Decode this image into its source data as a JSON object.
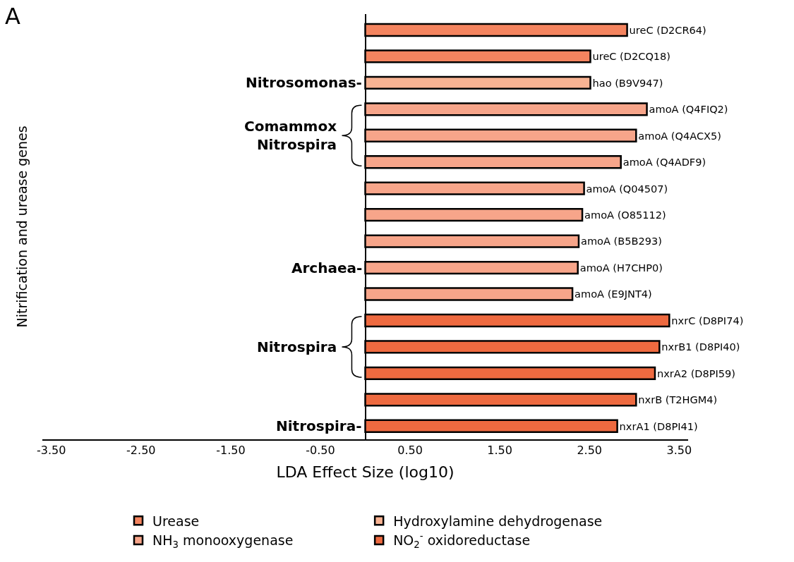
{
  "chart_data": {
    "type": "bar",
    "orientation": "horizontal",
    "xlabel": "LDA Effect Size (log10)",
    "ylabel": "Nitrification and urease genes",
    "categories": [
      "ureC (D2CR64)",
      "ureC (D2CQ18)",
      "hao (B9V947)",
      "amoA (Q4FIQ2)",
      "amoA (Q4ACX5)",
      "amoA (Q4ADF9)",
      "amoA (Q04507)",
      "amoA (O85112)",
      "amoA (B5B293)",
      "amoA (H7CHP0)",
      "amoA (E9JNT4)",
      "nxrC (D8PI74)",
      "nxrB1 (D8PI40)",
      "nxrA2 (D8PI59)",
      "nxrB (T2HGM4)",
      "nxrA1 (D8PI41)"
    ],
    "series": [
      {
        "name": "Urease",
        "color": "#f4845f",
        "values": [
          2.92,
          2.51,
          null,
          null,
          null,
          null,
          null,
          null,
          null,
          null,
          null,
          null,
          null,
          null,
          null,
          null
        ]
      },
      {
        "name": "Hydroxylamine dehydrogenase",
        "color": "#f8b393",
        "values": [
          null,
          null,
          2.51,
          null,
          null,
          null,
          null,
          null,
          null,
          null,
          null,
          null,
          null,
          null,
          null,
          null
        ]
      },
      {
        "name": "NH$_{3}$ monooxygenase",
        "color": "#f7a58a",
        "values": [
          null,
          null,
          null,
          3.14,
          3.02,
          2.85,
          2.44,
          2.42,
          2.38,
          2.37,
          2.31,
          null,
          null,
          null,
          null,
          null
        ]
      },
      {
        "name": "NO$_{2}$$^{-}$ oxidoreductase",
        "color": "#ee6a40",
        "values": [
          null,
          null,
          null,
          null,
          null,
          null,
          null,
          null,
          null,
          null,
          null,
          3.39,
          3.28,
          3.23,
          3.02,
          2.81
        ]
      }
    ],
    "xlim": [
      -3.6,
      3.6
    ],
    "xticks": [
      {
        "value": -3.5,
        "label": "-3.50"
      },
      {
        "value": -2.5,
        "label": "-2.50"
      },
      {
        "value": -1.5,
        "label": "-1.50"
      },
      {
        "value": -0.5,
        "label": "-0.50"
      },
      {
        "value": 0.5,
        "label": "0.50"
      },
      {
        "value": 1.5,
        "label": "1.50"
      },
      {
        "value": 2.5,
        "label": "2.50"
      },
      {
        "value": 3.5,
        "label": "3.50"
      }
    ],
    "tick_labels": "x",
    "legend": "bottom",
    "annotations": [
      "A",
      "Nitrosomonas-",
      "Comammox\nNitrospira",
      "Archaea-",
      "Nitrospira",
      "Nitrospira-"
    ]
  }
}
